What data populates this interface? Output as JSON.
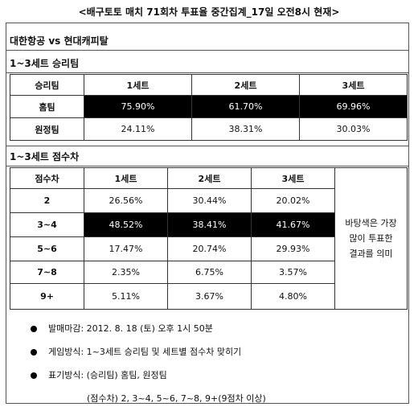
{
  "title": "<배구토토 매치 71회차 투표율 중간집계_17일 오전8시 현재>",
  "match": "대한항공 vs 현대캐피탈",
  "winner_section": {
    "heading": "1~3세트 승리팀",
    "headers": [
      "승리팀",
      "1세트",
      "2세트",
      "3세트"
    ],
    "rows": [
      {
        "label": "홈팀",
        "values": [
          "75.90%",
          "61.70%",
          "69.96%"
        ],
        "highlight": true
      },
      {
        "label": "원정팀",
        "values": [
          "24.11%",
          "38.31%",
          "30.03%"
        ],
        "highlight": false
      }
    ]
  },
  "score_section": {
    "heading": "1~3세트 점수차",
    "headers": [
      "점수차",
      "1세트",
      "2세트",
      "3세트"
    ],
    "rows": [
      {
        "label": "2",
        "values": [
          "26.56%",
          "30.44%",
          "20.02%"
        ],
        "highlight": false
      },
      {
        "label": "3~4",
        "values": [
          "48.52%",
          "38.41%",
          "41.67%"
        ],
        "highlight": true
      },
      {
        "label": "5~6",
        "values": [
          "17.47%",
          "20.74%",
          "29.93%"
        ],
        "highlight": false
      },
      {
        "label": "7~8",
        "values": [
          "2.35%",
          "6.75%",
          "3.57%"
        ],
        "highlight": false
      },
      {
        "label": "9+",
        "values": [
          "5.11%",
          "3.67%",
          "4.80%"
        ],
        "highlight": false
      }
    ],
    "legend": [
      "바탕색은 가장",
      "많이 투표한",
      "결과를 의미"
    ]
  },
  "notes": {
    "deadline": "발매마감: 2012. 8. 18 (토) 오후 1시 50분",
    "method": "게임방식: 1~3세트 승리팀 및 세트별 점수차 맞히기",
    "notation": "표기방식: (승리팀) 홈팀, 원정팀",
    "score_notation": "(점수차) 2, 3~4, 5~6, 7~8, 9+(9점차 이상)"
  },
  "colors": {
    "highlight_bg": "#000000",
    "highlight_text": "#ffffff",
    "border": "#333333"
  }
}
